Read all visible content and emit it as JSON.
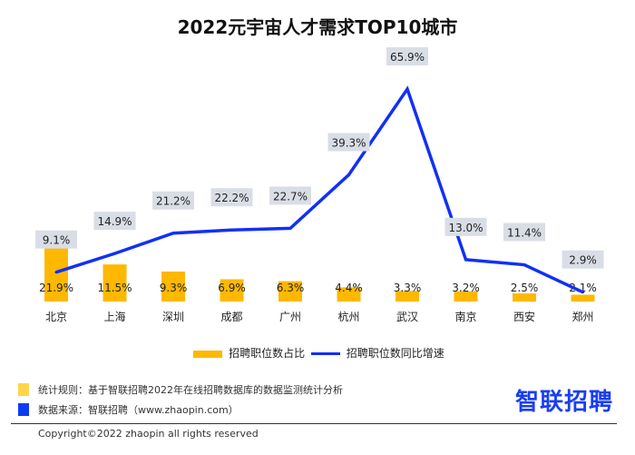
{
  "chart_data": {
    "type": "bar+line",
    "title": "2022元宇宙人才需求TOP10城市",
    "categories": [
      "北京",
      "上海",
      "深圳",
      "成都",
      "广州",
      "杭州",
      "武汉",
      "南京",
      "西安",
      "郑州"
    ],
    "series": [
      {
        "name": "招聘职位数占比",
        "type": "bar",
        "color": "#FFB800",
        "values": [
          21.9,
          11.5,
          9.3,
          6.9,
          6.3,
          4.4,
          3.3,
          3.2,
          2.5,
          2.1
        ],
        "labels": [
          "21.9%",
          "11.5%",
          "9.3%",
          "6.9%",
          "6.3%",
          "4.4%",
          "3.3%",
          "3.2%",
          "2.5%",
          "2.1%"
        ]
      },
      {
        "name": "招聘职位数同比增速",
        "type": "line",
        "color": "#1130F5",
        "values": [
          9.1,
          14.9,
          21.2,
          22.2,
          22.7,
          39.3,
          65.9,
          13.0,
          11.4,
          2.9
        ],
        "labels": [
          "9.1%",
          "14.9%",
          "21.2%",
          "22.2%",
          "22.7%",
          "39.3%",
          "65.9%",
          "13.0%",
          "11.4%",
          "2.9%"
        ]
      }
    ],
    "unit": "%",
    "grid": false,
    "legend_position": "bottom"
  },
  "notes": [
    {
      "text": "统计规则：基于智联招聘2022年在线招聘数据库的数据监测统计分析",
      "color": "#FFD54A"
    },
    {
      "text": "数据来源：智联招聘（www.zhaopin.com）",
      "color": "#0A3CF5"
    }
  ],
  "logo": "智联招聘",
  "copyright": "Copyright©2022 zhaopin all rights reserved",
  "colors": {
    "label_bg": "#D9DEE6"
  }
}
